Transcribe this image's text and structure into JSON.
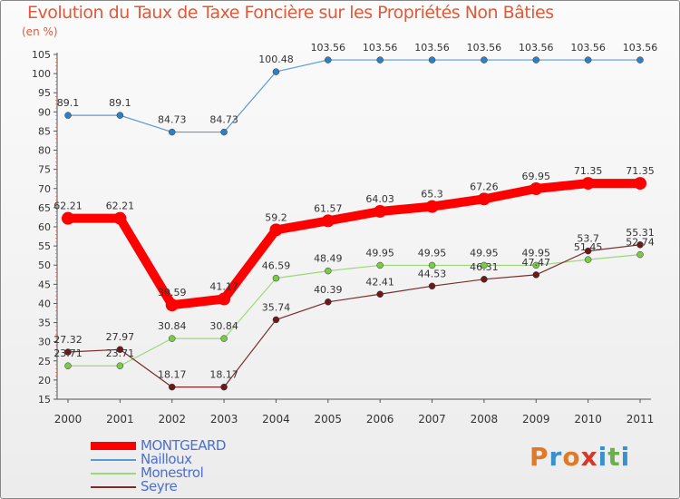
{
  "header": {
    "title": "Evolution du Taux de Taxe Foncière sur les Propriétés Non Bâties",
    "unit": "(en %)"
  },
  "brand": {
    "text": "Proxiti",
    "colors": [
      "#e07a28",
      "#3a8fd0",
      "#e07a28",
      "#d23a2a",
      "#3a8fd0",
      "#6ab04c",
      "#3a8fd0"
    ]
  },
  "chart_data": {
    "type": "line",
    "title": "Evolution du Taux de Taxe Foncière sur les Propriétés Non Bâties",
    "ylabel": "(en %)",
    "xlabel": "",
    "ylim": [
      15,
      105
    ],
    "yticks": [
      15,
      20,
      25,
      30,
      35,
      40,
      45,
      50,
      55,
      60,
      65,
      70,
      75,
      80,
      85,
      90,
      95,
      100,
      105
    ],
    "categories": [
      "2000",
      "2001",
      "2002",
      "2003",
      "2004",
      "2005",
      "2006",
      "2007",
      "2008",
      "2009",
      "2010",
      "2011"
    ],
    "series": [
      {
        "name": "Nailloux",
        "color": "#5a9ad4",
        "dot": "#2f7fc4",
        "width": 1.2,
        "values": [
          89.1,
          89.1,
          84.73,
          84.73,
          100.48,
          103.56,
          103.56,
          103.56,
          103.56,
          103.56,
          103.56,
          103.56
        ],
        "labels": [
          "89.1",
          "89.1",
          "84.73",
          "84.73",
          "100.48",
          "103.56",
          "103.56",
          "103.56",
          "103.56",
          "103.56",
          "103.56",
          "103.56"
        ]
      },
      {
        "name": "MONTGEARD",
        "color": "#ff0000",
        "dot": "#ff0000",
        "width": 10,
        "values": [
          62.21,
          62.21,
          39.59,
          41.17,
          59.2,
          61.57,
          64.03,
          65.3,
          67.26,
          69.95,
          71.35,
          71.35
        ],
        "labels": [
          "62.21",
          "62.21",
          "39.59",
          "41.17",
          "59.2",
          "61.57",
          "64.03",
          "65.3",
          "67.26",
          "69.95",
          "71.35",
          "71.35"
        ]
      },
      {
        "name": "Monestrol",
        "color": "#9cd87a",
        "dot": "#7cc84c",
        "width": 1.2,
        "values": [
          23.71,
          23.71,
          30.84,
          30.84,
          46.59,
          48.49,
          49.95,
          49.95,
          49.95,
          49.95,
          51.45,
          52.74
        ],
        "labels": [
          "23.71",
          "23.71",
          "30.84",
          "30.84",
          "46.59",
          "48.49",
          "49.95",
          "49.95",
          "49.95",
          "49.95",
          "51.45",
          "52.74"
        ]
      },
      {
        "name": "Seyre",
        "color": "#7a2a2a",
        "dot": "#6a1a1a",
        "width": 1.2,
        "values": [
          27.32,
          27.97,
          18.17,
          18.17,
          35.74,
          40.39,
          42.41,
          44.53,
          46.31,
          47.47,
          53.7,
          55.31
        ],
        "labels": [
          "27.32",
          "27.97",
          "18.17",
          "18.17",
          "35.74",
          "40.39",
          "42.41",
          "44.53",
          "46.31",
          "47.47",
          "53.7",
          "55.31"
        ]
      }
    ],
    "legend": [
      {
        "name": "MONTGEARD",
        "color": "#ff0000",
        "thick": true
      },
      {
        "name": "Nailloux",
        "color": "#5a9ad4",
        "thick": false
      },
      {
        "name": "Monestrol",
        "color": "#9cd87a",
        "thick": false
      },
      {
        "name": "Seyre",
        "color": "#7a2a2a",
        "thick": false
      }
    ],
    "grid": false,
    "legend_position": "bottom-left"
  }
}
